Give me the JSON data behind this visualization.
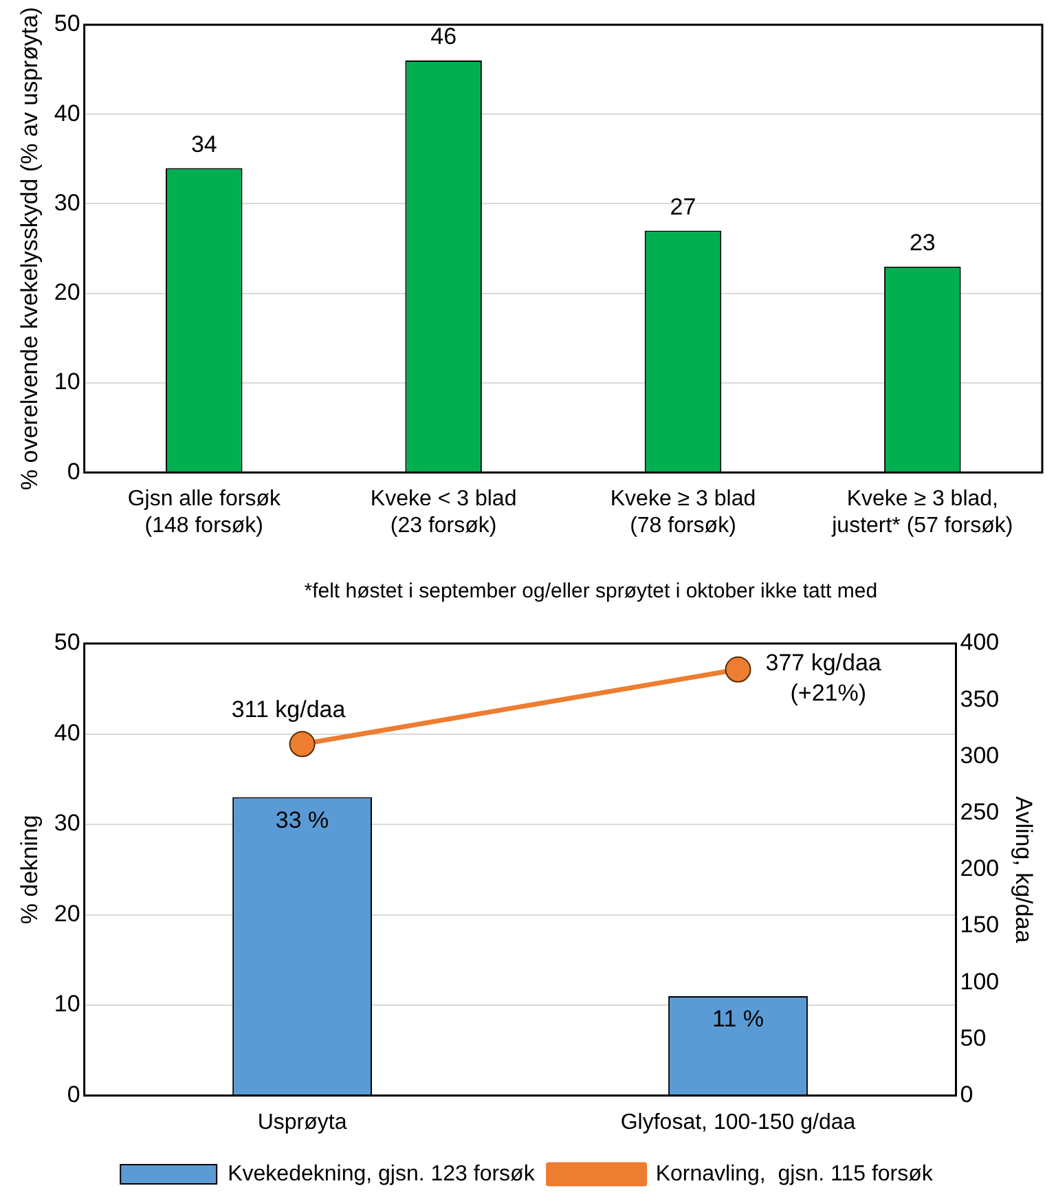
{
  "chart_data": [
    {
      "type": "bar",
      "ylabel": "% overelvende kvekelysskydd (% av usprøyta)",
      "categories": [
        "Gjsn alle forsøk\n(148 forsøk)",
        "Kveke < 3 blad\n(23 forsøk)",
        "Kveke ≥ 3 blad\n(78 forsøk)",
        "Kveke ≥ 3 blad,\njustert* (57 forsøk)"
      ],
      "values": [
        34,
        46,
        27,
        23
      ],
      "color": "#00b050",
      "ylim": [
        0,
        50
      ],
      "yticks": [
        0,
        10,
        20,
        30,
        40,
        50
      ],
      "grid": "y",
      "data_labels": true,
      "annotations": [
        "*felt høstet i september og/eller sprøytet i oktober ikke tatt med"
      ]
    },
    {
      "type": "bar",
      "ylabel": "% dekning",
      "y2label": "Avling, kg/daa",
      "categories": [
        "Usprøyta",
        "Glyfosat, 100-150 g/daa"
      ],
      "series": [
        {
          "name": "Kvekedekning, gjsn. 123 forsøk",
          "type": "bar",
          "color": "#5b9bd5",
          "values": [
            33,
            11
          ],
          "value_labels": [
            "33 %",
            "11 %"
          ]
        },
        {
          "name": "Kornavling,  gjsn. 115 forsøk",
          "type": "line",
          "axis": "y2",
          "color": "#ed7d31",
          "values": [
            311,
            377
          ],
          "value_labels": [
            "311 kg/daa",
            "377 kg/daa\n(+21%)"
          ]
        }
      ],
      "ylim": [
        0,
        50
      ],
      "yticks": [
        0,
        10,
        20,
        30,
        40,
        50
      ],
      "y2lim": [
        0,
        400
      ],
      "y2ticks": [
        0,
        50,
        100,
        150,
        200,
        250,
        300,
        350,
        400
      ],
      "grid": "y",
      "legend": "bottom",
      "marker": "circle"
    }
  ]
}
